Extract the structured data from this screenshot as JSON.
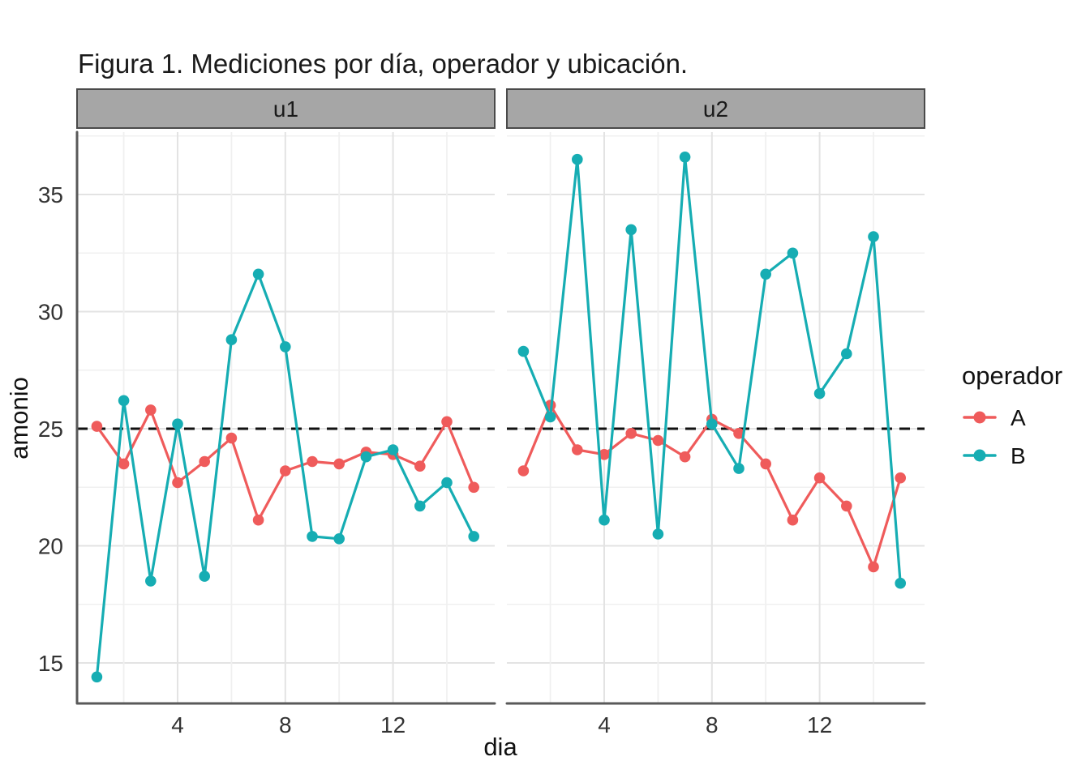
{
  "chart_data": {
    "type": "line",
    "title": "Figura 1. Mediciones por día, operador y ubicación.",
    "xlabel": "dia",
    "ylabel": "amonio",
    "x": [
      1,
      2,
      3,
      4,
      5,
      6,
      7,
      8,
      9,
      10,
      11,
      12,
      13,
      14,
      15
    ],
    "x_ticks": [
      4,
      8,
      12
    ],
    "x_minor_ticks": [
      2,
      6,
      10,
      14
    ],
    "y_ticks": [
      15,
      20,
      25,
      30,
      35
    ],
    "y_minor_ticks": [
      17.5,
      22.5,
      27.5,
      32.5,
      37.5
    ],
    "ylim": [
      13.3,
      37.8
    ],
    "grid": true,
    "reference_line": {
      "y": 25,
      "style": "dashed",
      "color": "#111111"
    },
    "legend": {
      "title": "operador",
      "position": "right",
      "entries": [
        "A",
        "B"
      ]
    },
    "facets": [
      {
        "label": "u1",
        "series": [
          {
            "name": "A",
            "color": "#EF5B5B",
            "values": [
              25.1,
              23.5,
              25.8,
              22.7,
              23.6,
              24.6,
              21.1,
              23.2,
              23.6,
              23.5,
              24.0,
              23.9,
              23.4,
              25.3,
              22.5
            ]
          },
          {
            "name": "B",
            "color": "#16ADB3",
            "values": [
              14.4,
              26.2,
              18.5,
              25.2,
              18.7,
              28.8,
              31.6,
              28.5,
              20.4,
              20.3,
              23.8,
              24.1,
              21.7,
              22.7,
              20.4
            ]
          }
        ]
      },
      {
        "label": "u2",
        "series": [
          {
            "name": "A",
            "color": "#EF5B5B",
            "values": [
              23.2,
              26.0,
              24.1,
              23.9,
              24.8,
              24.5,
              23.8,
              25.4,
              24.8,
              23.5,
              21.1,
              22.9,
              21.7,
              19.1,
              22.9
            ]
          },
          {
            "name": "B",
            "color": "#16ADB3",
            "values": [
              28.3,
              25.5,
              36.5,
              21.1,
              33.5,
              20.5,
              36.6,
              25.2,
              23.3,
              31.6,
              32.5,
              26.5,
              28.2,
              33.2,
              18.4
            ]
          }
        ]
      }
    ],
    "style": {
      "strip_fill": "#A6A6A6",
      "strip_border": "#4A4A4A",
      "grid_major": "#E3E3E3",
      "grid_minor": "#F0F0F0",
      "axis_line": "#595959",
      "title_color": "#1a1a1a",
      "tick_label_color": "#333333",
      "axis_title_color": "#111111",
      "series_A": "#EF5B5B",
      "series_B": "#16ADB3"
    }
  }
}
